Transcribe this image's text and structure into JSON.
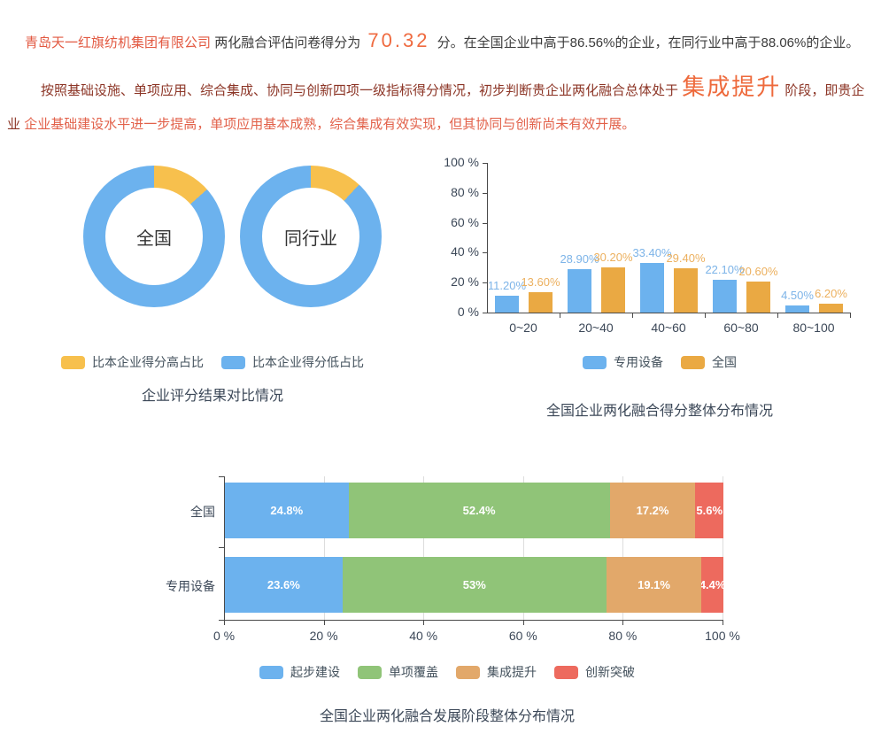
{
  "header": {
    "company": "青岛天一红旗纺机集团有限公司",
    "score_prefix": "两化融合评估问卷得分为",
    "score": "70.32",
    "score_suffix": "分。在全国企业中高于86.56%的企业，在同行业中高于88.06%的企业。",
    "assessment_part1": "按照基础设施、单项应用、综合集成、协同与创新四项一级指标得分情况，初步判断贵企业两化融合总体处于",
    "assessment_stage": "集成提升",
    "assessment_part2": "阶段，即贵企业",
    "assessment_part3": "企业基础建设水平进一步提高，单项应用基本成熟，综合集成有效实现，但其协同与创新尚未有效开展。"
  },
  "colors": {
    "blue": "#6cb2ee",
    "yellow": "#f7c04d",
    "orange": "#eaa943",
    "green": "#90c478",
    "tan": "#e2a86a",
    "red": "#ed6a5e",
    "blue_label": "#7db4e8",
    "orange_label": "#ecb05e"
  },
  "chart_data": [
    {
      "type": "pie",
      "subtype": "double-donut",
      "title": "企业评分结果对比情况",
      "donuts": [
        {
          "label": "全国",
          "higher_pct": 13.44,
          "lower_pct": 86.56
        },
        {
          "label": "同行业",
          "higher_pct": 11.94,
          "lower_pct": 88.06
        }
      ],
      "legend": [
        {
          "label": "比本企业得分高占比",
          "color": "#f7c04d"
        },
        {
          "label": "比本企业得分低占比",
          "color": "#6cb2ee"
        }
      ]
    },
    {
      "type": "bar",
      "title": "全国企业两化融合得分整体分布情况",
      "categories": [
        "0~20",
        "20~40",
        "40~60",
        "60~80",
        "80~100"
      ],
      "series": [
        {
          "name": "专用设备",
          "color": "#6cb2ee",
          "label_color": "#7db4e8",
          "values": [
            11.2,
            28.9,
            33.4,
            22.1,
            4.5
          ],
          "labels": [
            "11.20%",
            "28.90%",
            "33.40%",
            "22.10%",
            "4.50%"
          ]
        },
        {
          "name": "全国",
          "color": "#eaa943",
          "label_color": "#ecb05e",
          "values": [
            13.6,
            30.2,
            29.4,
            20.6,
            6.2
          ],
          "labels": [
            "13.60%",
            "30.20%",
            "29.40%",
            "20.60%",
            "6.20%"
          ]
        }
      ],
      "y_ticks": [
        "0 %",
        "20 %",
        "40 %",
        "60 %",
        "80 %",
        "100 %"
      ],
      "ylim": [
        0,
        100
      ],
      "grid": false,
      "legend_position": "bottom"
    },
    {
      "type": "stacked-bar-horizontal",
      "title": "全国企业两化融合发展阶段整体分布情况",
      "categories": [
        "全国",
        "专用设备"
      ],
      "series": [
        {
          "name": "起步建设",
          "color": "#6cb2ee",
          "values": [
            24.8,
            23.6
          ],
          "labels": [
            "24.8%",
            "23.6%"
          ]
        },
        {
          "name": "单项覆盖",
          "color": "#90c478",
          "values": [
            52.4,
            53
          ],
          "labels": [
            "52.4%",
            "53%"
          ]
        },
        {
          "name": "集成提升",
          "color": "#e2a86a",
          "values": [
            17.2,
            19.1
          ],
          "labels": [
            "17.2%",
            "19.1%"
          ]
        },
        {
          "name": "创新突破",
          "color": "#ed6a5e",
          "values": [
            5.6,
            4.4
          ],
          "labels": [
            "5.6%",
            "4.4%"
          ]
        }
      ],
      "x_ticks": [
        "0 %",
        "20 %",
        "40 %",
        "60 %",
        "80 %",
        "100 %"
      ],
      "xlim": [
        0,
        100
      ],
      "grid": true,
      "legend_position": "bottom"
    }
  ]
}
